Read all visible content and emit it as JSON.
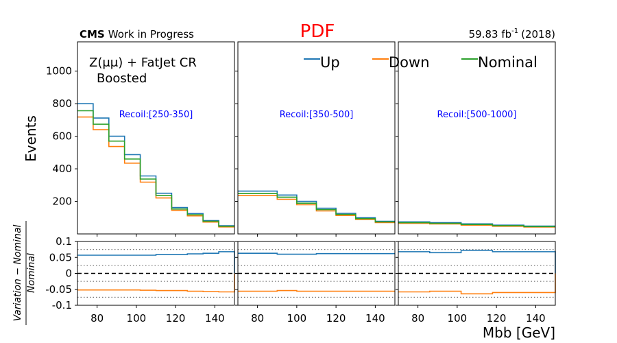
{
  "header": {
    "cms_bold": "CMS",
    "cms_rest": "Work in Progress",
    "title": "PDF",
    "lumi": "59.83 fb",
    "lumi_exp": "-1",
    "lumi_suffix": "(2018)"
  },
  "colors": {
    "up": "#1f77b4",
    "down": "#ff7f0e",
    "nominal": "#2ca02c",
    "title": "#ff0000",
    "recoil_label": "#0000ff"
  },
  "chart_data": {
    "type": "line",
    "region_label_line1": "Z(μμ) + FatJet CR",
    "region_label_line2": "Boosted",
    "ylabel": "Events",
    "xlabel": "Mbb [GeV]",
    "ratio_ylabel_num": "Variation − Nominal",
    "ratio_ylabel_den": "Nominal",
    "legend": [
      "Up",
      "Down",
      "Nominal"
    ],
    "legend_placement": "top",
    "xlim": [
      70,
      150
    ],
    "ylim": [
      0,
      1180
    ],
    "yticks": [
      200,
      400,
      600,
      800,
      1000
    ],
    "xticks": [
      80,
      100,
      120,
      140
    ],
    "ratio_ylim": [
      -0.1,
      0.1
    ],
    "ratio_yticks": [
      -0.1,
      -0.05,
      0,
      0.05,
      0.1
    ],
    "ratio_ytick_labels": [
      "-0.1",
      "-0.05",
      "0",
      "0.05",
      "0.1"
    ],
    "ratio_dotted_lines": [
      -0.075,
      -0.025,
      0.025,
      0.075
    ],
    "panels": [
      {
        "recoil": "Recoil:[250-350]",
        "edges": [
          70,
          78,
          86,
          94,
          102,
          110,
          118,
          126,
          134,
          142,
          150
        ],
        "series": [
          {
            "name": "Up",
            "values": [
              800,
              712,
              600,
              487,
              356,
              250,
              162,
              125,
              82,
              50
            ]
          },
          {
            "name": "Down",
            "values": [
              718,
              640,
              537,
              435,
              318,
              221,
              145,
              111,
              73,
              43
            ]
          },
          {
            "name": "Nominal",
            "values": [
              757,
              674,
              570,
              460,
              337,
              237,
              153,
              118,
              78,
              47
            ]
          }
        ],
        "ratio_up": [
          0.057,
          0.057,
          0.057,
          0.057,
          0.057,
          0.059,
          0.059,
          0.061,
          0.063,
          0.068
        ],
        "ratio_down": [
          -0.052,
          -0.052,
          -0.052,
          -0.052,
          -0.053,
          -0.054,
          -0.054,
          -0.056,
          -0.057,
          -0.058
        ]
      },
      {
        "recoil": "Recoil:[350-500]",
        "edges": [
          70,
          90,
          100,
          110,
          120,
          130,
          140,
          150
        ],
        "series": [
          {
            "name": "Up",
            "values": [
              263,
              239,
              200,
              158,
              127,
              100,
              78
            ]
          },
          {
            "name": "Down",
            "values": [
              235,
              213,
              179,
              141,
              113,
              89,
              70
            ]
          },
          {
            "name": "Nominal",
            "values": [
              248,
              226,
              189,
              149,
              120,
              94,
              74
            ]
          }
        ],
        "ratio_up": [
          0.063,
          0.06,
          0.06,
          0.062,
          0.062,
          0.062,
          0.062
        ],
        "ratio_down": [
          -0.056,
          -0.054,
          -0.056,
          -0.056,
          -0.056,
          -0.056,
          -0.056
        ]
      },
      {
        "recoil": "Recoil:[500-1000]",
        "edges": [
          70,
          86,
          102,
          118,
          134,
          150
        ],
        "series": [
          {
            "name": "Up",
            "values": [
              74,
              69,
              62,
              54,
              48
            ]
          },
          {
            "name": "Down",
            "values": [
              65,
              61,
              54,
              47,
              42
            ]
          },
          {
            "name": "Nominal",
            "values": [
              69,
              65,
              58,
              51,
              45
            ]
          }
        ],
        "ratio_up": [
          0.068,
          0.065,
          0.072,
          0.068,
          0.068
        ],
        "ratio_down": [
          -0.058,
          -0.056,
          -0.064,
          -0.06,
          -0.06
        ]
      }
    ]
  }
}
